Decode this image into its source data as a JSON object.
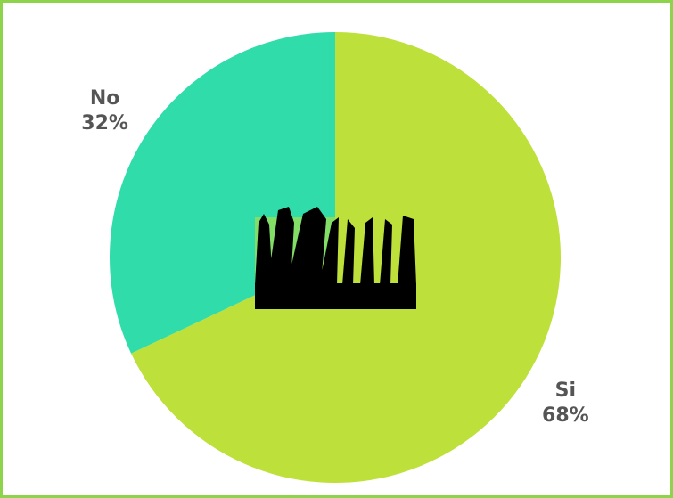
{
  "chart_data": {
    "type": "pie",
    "categories": [
      "Si",
      "No"
    ],
    "values": [
      68,
      32
    ],
    "value_labels": [
      "68%",
      "32%"
    ],
    "colors": [
      "#bde03a",
      "#2fdcaa"
    ]
  }
}
